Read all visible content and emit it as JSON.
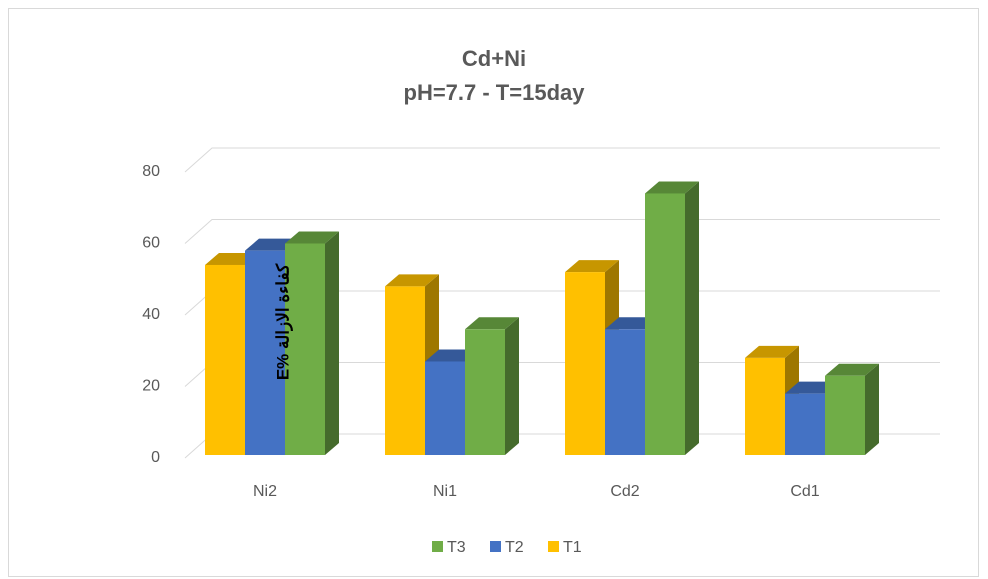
{
  "chart_data": {
    "type": "bar3d",
    "title": "Cd+Ni",
    "subtitle": "pH=7.7  - T=15day",
    "y_label": "E% كفاءة الازالة",
    "categories": [
      "Ni2",
      "Ni1",
      "Cd2",
      "Cd1"
    ],
    "series": [
      {
        "name": "T1",
        "color": "#ffc000",
        "values": [
          54,
          48,
          52,
          28
        ]
      },
      {
        "name": "T2",
        "color": "#4472c4",
        "values": [
          58,
          27,
          36,
          18
        ]
      },
      {
        "name": "T3",
        "color": "#70ad47",
        "values": [
          60,
          36,
          74,
          23
        ]
      }
    ],
    "ylim": [
      0,
      80
    ],
    "yticks": [
      0,
      20,
      40,
      60,
      80
    ],
    "grid": true,
    "legend": "bottom"
  }
}
